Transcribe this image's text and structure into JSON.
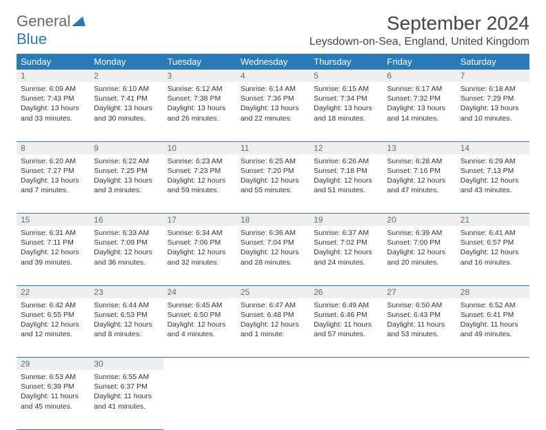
{
  "brand": {
    "part1": "General",
    "part2": "Blue",
    "logo_color": "#2a7ab8",
    "text_color": "#6a6a6a"
  },
  "title": "September 2024",
  "location": "Leysdown-on-Sea, England, United Kingdom",
  "colors": {
    "header_bg": "#2a7ab8",
    "header_fg": "#ffffff",
    "daynum_bg": "#eeeeee",
    "border": "#2a7ab8"
  },
  "weekdays": [
    "Sunday",
    "Monday",
    "Tuesday",
    "Wednesday",
    "Thursday",
    "Friday",
    "Saturday"
  ],
  "weeks": [
    [
      {
        "n": "1",
        "sr": "Sunrise: 6:09 AM",
        "ss": "Sunset: 7:43 PM",
        "dl": "Daylight: 13 hours and 33 minutes."
      },
      {
        "n": "2",
        "sr": "Sunrise: 6:10 AM",
        "ss": "Sunset: 7:41 PM",
        "dl": "Daylight: 13 hours and 30 minutes."
      },
      {
        "n": "3",
        "sr": "Sunrise: 6:12 AM",
        "ss": "Sunset: 7:38 PM",
        "dl": "Daylight: 13 hours and 26 minutes."
      },
      {
        "n": "4",
        "sr": "Sunrise: 6:14 AM",
        "ss": "Sunset: 7:36 PM",
        "dl": "Daylight: 13 hours and 22 minutes."
      },
      {
        "n": "5",
        "sr": "Sunrise: 6:15 AM",
        "ss": "Sunset: 7:34 PM",
        "dl": "Daylight: 13 hours and 18 minutes."
      },
      {
        "n": "6",
        "sr": "Sunrise: 6:17 AM",
        "ss": "Sunset: 7:32 PM",
        "dl": "Daylight: 13 hours and 14 minutes."
      },
      {
        "n": "7",
        "sr": "Sunrise: 6:18 AM",
        "ss": "Sunset: 7:29 PM",
        "dl": "Daylight: 13 hours and 10 minutes."
      }
    ],
    [
      {
        "n": "8",
        "sr": "Sunrise: 6:20 AM",
        "ss": "Sunset: 7:27 PM",
        "dl": "Daylight: 13 hours and 7 minutes."
      },
      {
        "n": "9",
        "sr": "Sunrise: 6:22 AM",
        "ss": "Sunset: 7:25 PM",
        "dl": "Daylight: 13 hours and 3 minutes."
      },
      {
        "n": "10",
        "sr": "Sunrise: 6:23 AM",
        "ss": "Sunset: 7:23 PM",
        "dl": "Daylight: 12 hours and 59 minutes."
      },
      {
        "n": "11",
        "sr": "Sunrise: 6:25 AM",
        "ss": "Sunset: 7:20 PM",
        "dl": "Daylight: 12 hours and 55 minutes."
      },
      {
        "n": "12",
        "sr": "Sunrise: 6:26 AM",
        "ss": "Sunset: 7:18 PM",
        "dl": "Daylight: 12 hours and 51 minutes."
      },
      {
        "n": "13",
        "sr": "Sunrise: 6:28 AM",
        "ss": "Sunset: 7:16 PM",
        "dl": "Daylight: 12 hours and 47 minutes."
      },
      {
        "n": "14",
        "sr": "Sunrise: 6:29 AM",
        "ss": "Sunset: 7:13 PM",
        "dl": "Daylight: 12 hours and 43 minutes."
      }
    ],
    [
      {
        "n": "15",
        "sr": "Sunrise: 6:31 AM",
        "ss": "Sunset: 7:11 PM",
        "dl": "Daylight: 12 hours and 39 minutes."
      },
      {
        "n": "16",
        "sr": "Sunrise: 6:33 AM",
        "ss": "Sunset: 7:09 PM",
        "dl": "Daylight: 12 hours and 36 minutes."
      },
      {
        "n": "17",
        "sr": "Sunrise: 6:34 AM",
        "ss": "Sunset: 7:06 PM",
        "dl": "Daylight: 12 hours and 32 minutes."
      },
      {
        "n": "18",
        "sr": "Sunrise: 6:36 AM",
        "ss": "Sunset: 7:04 PM",
        "dl": "Daylight: 12 hours and 28 minutes."
      },
      {
        "n": "19",
        "sr": "Sunrise: 6:37 AM",
        "ss": "Sunset: 7:02 PM",
        "dl": "Daylight: 12 hours and 24 minutes."
      },
      {
        "n": "20",
        "sr": "Sunrise: 6:39 AM",
        "ss": "Sunset: 7:00 PM",
        "dl": "Daylight: 12 hours and 20 minutes."
      },
      {
        "n": "21",
        "sr": "Sunrise: 6:41 AM",
        "ss": "Sunset: 6:57 PM",
        "dl": "Daylight: 12 hours and 16 minutes."
      }
    ],
    [
      {
        "n": "22",
        "sr": "Sunrise: 6:42 AM",
        "ss": "Sunset: 6:55 PM",
        "dl": "Daylight: 12 hours and 12 minutes."
      },
      {
        "n": "23",
        "sr": "Sunrise: 6:44 AM",
        "ss": "Sunset: 6:53 PM",
        "dl": "Daylight: 12 hours and 8 minutes."
      },
      {
        "n": "24",
        "sr": "Sunrise: 6:45 AM",
        "ss": "Sunset: 6:50 PM",
        "dl": "Daylight: 12 hours and 4 minutes."
      },
      {
        "n": "25",
        "sr": "Sunrise: 6:47 AM",
        "ss": "Sunset: 6:48 PM",
        "dl": "Daylight: 12 hours and 1 minute."
      },
      {
        "n": "26",
        "sr": "Sunrise: 6:49 AM",
        "ss": "Sunset: 6:46 PM",
        "dl": "Daylight: 11 hours and 57 minutes."
      },
      {
        "n": "27",
        "sr": "Sunrise: 6:50 AM",
        "ss": "Sunset: 6:43 PM",
        "dl": "Daylight: 11 hours and 53 minutes."
      },
      {
        "n": "28",
        "sr": "Sunrise: 6:52 AM",
        "ss": "Sunset: 6:41 PM",
        "dl": "Daylight: 11 hours and 49 minutes."
      }
    ],
    [
      {
        "n": "29",
        "sr": "Sunrise: 6:53 AM",
        "ss": "Sunset: 6:39 PM",
        "dl": "Daylight: 11 hours and 45 minutes."
      },
      {
        "n": "30",
        "sr": "Sunrise: 6:55 AM",
        "ss": "Sunset: 6:37 PM",
        "dl": "Daylight: 11 hours and 41 minutes."
      },
      null,
      null,
      null,
      null,
      null
    ]
  ]
}
